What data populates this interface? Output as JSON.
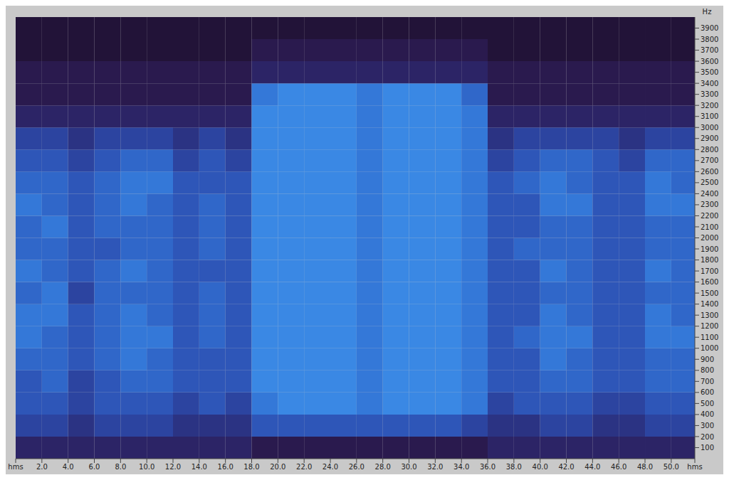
{
  "chart_data": {
    "type": "heatmap",
    "ylabel": "Hz",
    "xlim": [
      0,
      51.8
    ],
    "xticks": [
      {
        "value": 0,
        "label": "hms"
      },
      {
        "value": 2,
        "label": "2.0"
      },
      {
        "value": 4,
        "label": "4.0"
      },
      {
        "value": 6,
        "label": "6.0"
      },
      {
        "value": 8,
        "label": "8.0"
      },
      {
        "value": 10,
        "label": "10.0"
      },
      {
        "value": 12,
        "label": "12.0"
      },
      {
        "value": 14,
        "label": "14.0"
      },
      {
        "value": 16,
        "label": "16.0"
      },
      {
        "value": 18,
        "label": "18.0"
      },
      {
        "value": 20,
        "label": "20.0"
      },
      {
        "value": 22,
        "label": "22.0"
      },
      {
        "value": 24,
        "label": "24.0"
      },
      {
        "value": 26,
        "label": "26.0"
      },
      {
        "value": 28,
        "label": "28.0"
      },
      {
        "value": 30,
        "label": "30.0"
      },
      {
        "value": 32,
        "label": "32.0"
      },
      {
        "value": 34,
        "label": "34.0"
      },
      {
        "value": 36,
        "label": "36.0"
      },
      {
        "value": 38,
        "label": "38.0"
      },
      {
        "value": 40,
        "label": "40.0"
      },
      {
        "value": 42,
        "label": "42.0"
      },
      {
        "value": 44,
        "label": "44.0"
      },
      {
        "value": 46,
        "label": "46.0"
      },
      {
        "value": 48,
        "label": "48.0"
      },
      {
        "value": 50,
        "label": "50.0"
      },
      {
        "value": 51.8,
        "label": "hms"
      }
    ],
    "ylim": [
      0,
      4000
    ],
    "yticks": [
      100,
      200,
      300,
      400,
      500,
      600,
      700,
      800,
      900,
      1000,
      1100,
      1200,
      1300,
      1400,
      1500,
      1600,
      1700,
      1800,
      1900,
      2000,
      2100,
      2200,
      2300,
      2400,
      2500,
      2600,
      2700,
      2800,
      2900,
      3000,
      3100,
      3200,
      3300,
      3400,
      3500,
      3600,
      3700,
      3800,
      3900
    ],
    "x_bins": [
      0,
      2,
      4,
      6,
      8,
      10,
      12,
      14,
      16,
      18,
      20,
      22,
      24,
      26,
      28,
      30,
      32,
      34,
      36,
      38,
      40,
      42,
      44,
      46,
      48,
      50,
      51.8
    ],
    "y_bins": [
      0,
      200,
      400,
      600,
      800,
      1000,
      1200,
      1400,
      1600,
      1800,
      2000,
      2200,
      2400,
      2600,
      2800,
      3000,
      3200,
      3400,
      3600,
      3800,
      4000
    ],
    "cells": [
      [
        2,
        4,
        5,
        5,
        6,
        7,
        7,
        6,
        7,
        6,
        6,
        7,
        6,
        5,
        4,
        2,
        1,
        1,
        0,
        0
      ],
      [
        2,
        4,
        5,
        6,
        6,
        6,
        7,
        7,
        6,
        6,
        7,
        6,
        6,
        5,
        4,
        2,
        1,
        1,
        0,
        0
      ],
      [
        2,
        3,
        4,
        4,
        5,
        5,
        5,
        4,
        5,
        5,
        5,
        5,
        5,
        4,
        3,
        2,
        1,
        1,
        0,
        0
      ],
      [
        2,
        4,
        5,
        5,
        6,
        6,
        6,
        6,
        6,
        5,
        6,
        6,
        6,
        5,
        4,
        2,
        1,
        1,
        0,
        0
      ],
      [
        2,
        4,
        5,
        6,
        7,
        7,
        7,
        6,
        7,
        6,
        6,
        7,
        7,
        6,
        4,
        2,
        1,
        1,
        0,
        0
      ],
      [
        2,
        4,
        5,
        6,
        6,
        7,
        6,
        6,
        6,
        6,
        6,
        6,
        7,
        6,
        4,
        2,
        1,
        1,
        0,
        0
      ],
      [
        2,
        3,
        4,
        5,
        5,
        5,
        5,
        5,
        5,
        5,
        5,
        5,
        5,
        4,
        3,
        2,
        1,
        1,
        0,
        0
      ],
      [
        2,
        3,
        5,
        5,
        5,
        6,
        6,
        6,
        5,
        6,
        6,
        6,
        5,
        5,
        4,
        2,
        1,
        1,
        0,
        0
      ],
      [
        2,
        3,
        4,
        5,
        5,
        5,
        5,
        5,
        5,
        5,
        5,
        5,
        5,
        4,
        3,
        2,
        1,
        1,
        0,
        0
      ],
      [
        1,
        5,
        7,
        8,
        8,
        8,
        8,
        8,
        8,
        8,
        8,
        8,
        8,
        8,
        8,
        8,
        7,
        2,
        1,
        0
      ],
      [
        1,
        5,
        8,
        8,
        8,
        8,
        8,
        8,
        8,
        8,
        8,
        8,
        8,
        8,
        8,
        8,
        8,
        2,
        1,
        0
      ],
      [
        1,
        5,
        8,
        8,
        8,
        8,
        8,
        8,
        8,
        8,
        8,
        8,
        8,
        8,
        8,
        8,
        8,
        2,
        1,
        0
      ],
      [
        1,
        5,
        8,
        8,
        8,
        8,
        8,
        8,
        8,
        8,
        8,
        8,
        8,
        8,
        8,
        8,
        8,
        2,
        1,
        0
      ],
      [
        1,
        5,
        7,
        7,
        7,
        7,
        7,
        7,
        7,
        7,
        7,
        7,
        7,
        7,
        7,
        7,
        7,
        2,
        1,
        0
      ],
      [
        1,
        5,
        8,
        8,
        8,
        8,
        8,
        8,
        8,
        8,
        8,
        8,
        8,
        8,
        8,
        8,
        8,
        2,
        1,
        0
      ],
      [
        1,
        5,
        8,
        8,
        8,
        8,
        8,
        8,
        8,
        8,
        8,
        8,
        8,
        8,
        8,
        8,
        8,
        2,
        1,
        0
      ],
      [
        1,
        5,
        8,
        8,
        8,
        8,
        8,
        8,
        8,
        8,
        8,
        8,
        8,
        8,
        8,
        8,
        8,
        2,
        1,
        0
      ],
      [
        1,
        4,
        7,
        7,
        7,
        7,
        7,
        7,
        7,
        7,
        7,
        7,
        7,
        7,
        7,
        7,
        6,
        2,
        1,
        0
      ],
      [
        2,
        3,
        4,
        5,
        5,
        5,
        5,
        5,
        5,
        5,
        5,
        5,
        5,
        4,
        3,
        2,
        1,
        1,
        0,
        0
      ],
      [
        2,
        3,
        5,
        5,
        5,
        6,
        5,
        5,
        5,
        6,
        5,
        5,
        6,
        5,
        4,
        2,
        1,
        1,
        0,
        0
      ],
      [
        2,
        4,
        5,
        6,
        7,
        7,
        7,
        6,
        7,
        6,
        6,
        7,
        7,
        6,
        4,
        2,
        1,
        1,
        0,
        0
      ],
      [
        2,
        4,
        5,
        6,
        6,
        7,
        6,
        6,
        6,
        6,
        6,
        7,
        6,
        6,
        4,
        2,
        1,
        1,
        0,
        0
      ],
      [
        2,
        3,
        4,
        5,
        5,
        5,
        5,
        5,
        5,
        5,
        5,
        5,
        5,
        5,
        4,
        2,
        1,
        1,
        0,
        0
      ],
      [
        2,
        3,
        4,
        5,
        5,
        5,
        5,
        5,
        5,
        5,
        5,
        5,
        5,
        4,
        3,
        2,
        1,
        1,
        0,
        0
      ],
      [
        2,
        4,
        5,
        6,
        6,
        7,
        7,
        6,
        7,
        6,
        6,
        7,
        7,
        6,
        4,
        2,
        1,
        1,
        0,
        0
      ],
      [
        2,
        4,
        5,
        6,
        6,
        7,
        6,
        6,
        6,
        6,
        6,
        7,
        6,
        6,
        4,
        2,
        1,
        1,
        0,
        0
      ]
    ]
  }
}
